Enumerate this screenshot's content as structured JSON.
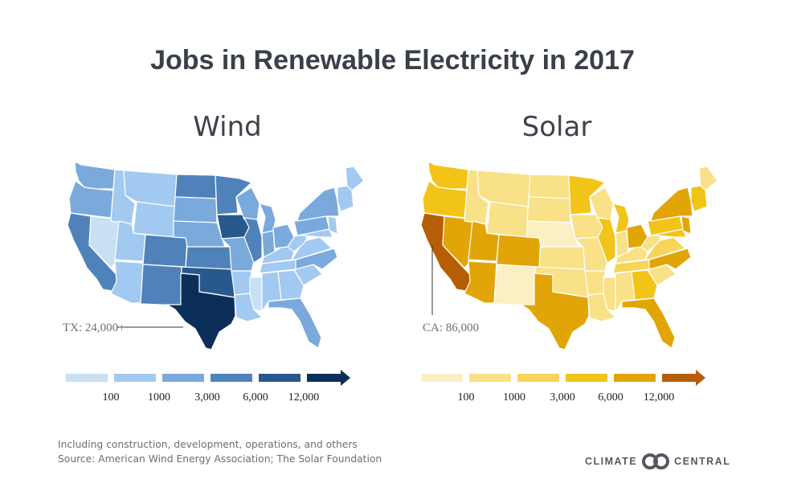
{
  "title": "Jobs in Renewable Electricity in 2017",
  "maps": [
    {
      "id": "wind",
      "title": "Wind",
      "callout": "TX: 24,000+",
      "legend_labels": [
        "100",
        "1000",
        "3,000",
        "6,000",
        "12,000"
      ],
      "colors": [
        "#c8e0f4",
        "#a2c9f0",
        "#7aaadb",
        "#4f82bb",
        "#28598d",
        "#0b2f58"
      ],
      "states": [
        [
          "WA",
          2
        ],
        [
          "OR",
          2
        ],
        [
          "CA",
          3
        ],
        [
          "NV",
          0
        ],
        [
          "ID",
          1
        ],
        [
          "MT",
          1
        ],
        [
          "WY",
          1
        ],
        [
          "UT",
          1
        ],
        [
          "AZ",
          1
        ],
        [
          "CO",
          3
        ],
        [
          "NM",
          3
        ],
        [
          "ND",
          3
        ],
        [
          "SD",
          2
        ],
        [
          "NE",
          2
        ],
        [
          "KS",
          3
        ],
        [
          "OK",
          4
        ],
        [
          "TX",
          5
        ],
        [
          "MN",
          3
        ],
        [
          "IA",
          4
        ],
        [
          "MO",
          2
        ],
        [
          "AR",
          1
        ],
        [
          "LA",
          1
        ],
        [
          "WI",
          2
        ],
        [
          "IL",
          3
        ],
        [
          "MS",
          0
        ],
        [
          "MI",
          2
        ],
        [
          "IN",
          2
        ],
        [
          "KY",
          1
        ],
        [
          "TN",
          1
        ],
        [
          "AL",
          1
        ],
        [
          "OH",
          2
        ],
        [
          "GA",
          1
        ],
        [
          "FL",
          2
        ],
        [
          "SC",
          1
        ],
        [
          "NC",
          2
        ],
        [
          "VA",
          1
        ],
        [
          "WV",
          1
        ],
        [
          "PA",
          2
        ],
        [
          "NY",
          2
        ],
        [
          "ME",
          1
        ],
        [
          "NE6",
          1
        ],
        [
          "MD",
          1
        ],
        [
          "NJ",
          1
        ]
      ]
    },
    {
      "id": "solar",
      "title": "Solar",
      "callout": "CA: 86,000",
      "legend_labels": [
        "100",
        "1000",
        "3,000",
        "6,000",
        "12,000"
      ],
      "colors": [
        "#faf0c4",
        "#f8e187",
        "#f5d55a",
        "#f2c418",
        "#e1a507",
        "#b55e06"
      ],
      "states": [
        [
          "WA",
          3
        ],
        [
          "OR",
          3
        ],
        [
          "CA",
          5
        ],
        [
          "NV",
          4
        ],
        [
          "ID",
          1
        ],
        [
          "MT",
          1
        ],
        [
          "WY",
          1
        ],
        [
          "UT",
          4
        ],
        [
          "AZ",
          4
        ],
        [
          "CO",
          4
        ],
        [
          "NM",
          0
        ],
        [
          "ND",
          1
        ],
        [
          "SD",
          1
        ],
        [
          "NE",
          0
        ],
        [
          "KS",
          1
        ],
        [
          "OK",
          1
        ],
        [
          "TX",
          4
        ],
        [
          "MN",
          3
        ],
        [
          "IA",
          1
        ],
        [
          "MO",
          1
        ],
        [
          "AR",
          1
        ],
        [
          "LA",
          1
        ],
        [
          "WI",
          1
        ],
        [
          "IL",
          3
        ],
        [
          "MS",
          1
        ],
        [
          "MI",
          3
        ],
        [
          "IN",
          1
        ],
        [
          "KY",
          1
        ],
        [
          "TN",
          2
        ],
        [
          "AL",
          1
        ],
        [
          "OH",
          4
        ],
        [
          "GA",
          3
        ],
        [
          "FL",
          4
        ],
        [
          "SC",
          1
        ],
        [
          "NC",
          4
        ],
        [
          "VA",
          2
        ],
        [
          "WV",
          1
        ],
        [
          "PA",
          3
        ],
        [
          "NY",
          4
        ],
        [
          "ME",
          1
        ],
        [
          "NE6",
          3
        ],
        [
          "MD",
          3
        ],
        [
          "NJ",
          4
        ]
      ]
    }
  ],
  "footnote": "Including construction, development, operations, and others",
  "source": "Source: American Wind Energy Association; The Solar Foundation",
  "logo": {
    "left": "CLIMATE",
    "right": "CENTRAL",
    "icon": "climate-central-rings-icon"
  }
}
